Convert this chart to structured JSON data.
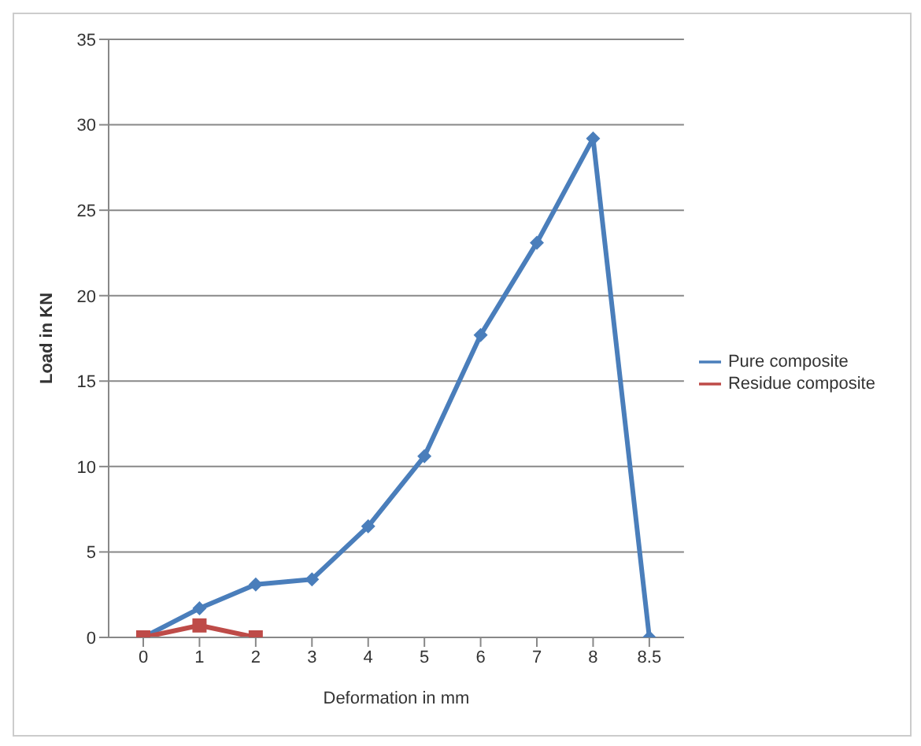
{
  "chart_data": {
    "type": "line",
    "xlabel": "Deformation in mm",
    "ylabel": "Load in KN",
    "categories": [
      "0",
      "1",
      "2",
      "3",
      "4",
      "5",
      "6",
      "7",
      "8",
      "8.5"
    ],
    "series": [
      {
        "name": "Pure composite",
        "color": "#4a7ebb",
        "marker": "diamond",
        "values": [
          0,
          1.7,
          3.1,
          3.4,
          6.5,
          10.6,
          17.7,
          23.1,
          29.2,
          0
        ]
      },
      {
        "name": "Residue composite",
        "color": "#be4b48",
        "marker": "square",
        "values": [
          0,
          0.7,
          0,
          null,
          null,
          null,
          null,
          null,
          null,
          null
        ]
      }
    ],
    "ylim": [
      0,
      35
    ],
    "yticks": [
      0,
      5,
      10,
      15,
      20,
      25,
      30,
      35
    ],
    "grid": "y",
    "legend": "right"
  }
}
